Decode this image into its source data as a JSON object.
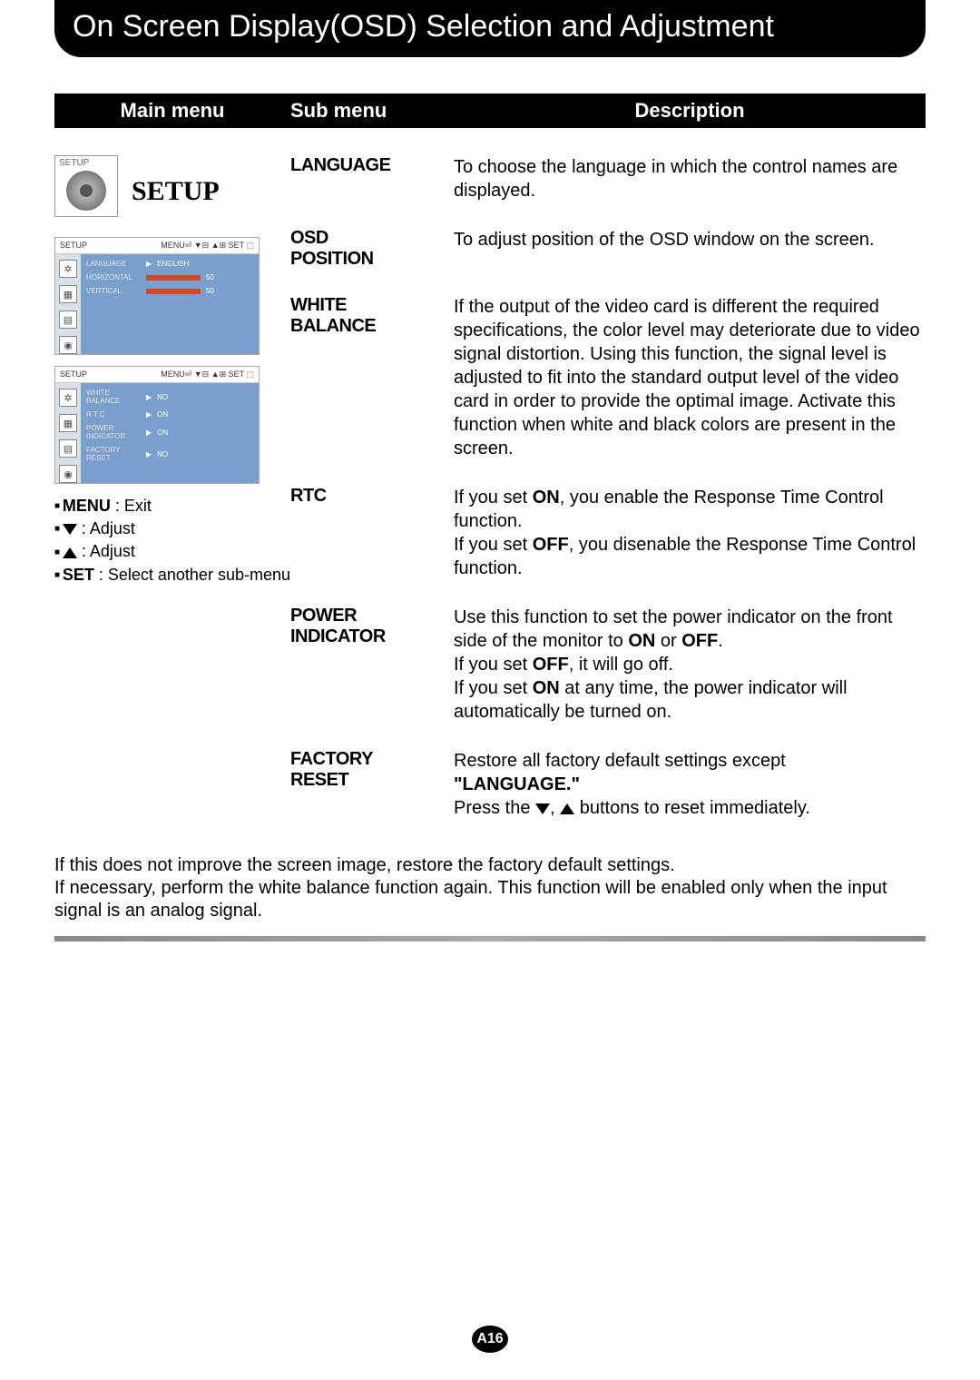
{
  "page": {
    "title": "On Screen Display(OSD) Selection and Adjustment",
    "pageNumber": "A16"
  },
  "headers": {
    "main": "Main menu",
    "sub": "Sub menu",
    "desc": "Description"
  },
  "mainMenu": {
    "badgeLabel": "SETUP",
    "title": "SETUP"
  },
  "osdShot1": {
    "headerLeft": "SETUP",
    "headerRight": "MENU⏎  ▼⊟  ▲⊞  SET ⬚",
    "rows": [
      {
        "label": "LANGUAGE",
        "value": "ENGLISH",
        "arrow": "▶",
        "bar": false
      },
      {
        "label": "HORIZONTAL",
        "value": "50",
        "arrow": "",
        "bar": true
      },
      {
        "label": "VERTICAL",
        "value": "50",
        "arrow": "",
        "bar": true
      }
    ],
    "icons": [
      "✲",
      "▦",
      "▤",
      "◉"
    ]
  },
  "osdShot2": {
    "headerLeft": "SETUP",
    "headerRight": "MENU⏎  ▼⊟  ▲⊞  SET ⬚",
    "rows": [
      {
        "label": "WHITE BALANCE",
        "value": "NO",
        "arrow": "▶",
        "bar": false
      },
      {
        "label": "R T C",
        "value": "ON",
        "arrow": "▶",
        "bar": false
      },
      {
        "label": "POWER INDICATOR",
        "value": "ON",
        "arrow": "▶",
        "bar": false
      },
      {
        "label": "FACTORY RESET",
        "value": "NO",
        "arrow": "▶",
        "bar": false
      }
    ],
    "icons": [
      "✲",
      "▦",
      "▤",
      "◉"
    ]
  },
  "nav": {
    "menu": {
      "key": "MENU",
      "desc": ": Exit"
    },
    "down": {
      "desc": ": Adjust"
    },
    "up": {
      "desc": ": Adjust"
    },
    "set": {
      "key": "SET",
      "desc": ": Select another sub-menu"
    }
  },
  "items": [
    {
      "sub": "LANGUAGE",
      "desc": "To choose the language in which the control names are displayed."
    },
    {
      "sub": "OSD\nPOSITION",
      "desc": "To adjust position of the OSD window on the screen."
    },
    {
      "sub": "WHITE\nBALANCE",
      "desc": "If the output of the video card is different the required specifications, the color level may deteriorate due to video signal distortion. Using this function, the signal level is adjusted to fit into the standard output level of the video card in order to provide the optimal image. Activate this function when white and black colors are present in the screen."
    },
    {
      "sub": "RTC",
      "descParts": {
        "p1": "If you set ",
        "b1": "ON",
        "p2": ", you enable the Response Time Control function.",
        "p3": "If you set ",
        "b2": "OFF",
        "p4": ", you disenable the Response Time Control function."
      }
    },
    {
      "sub": "POWER\nINDICATOR",
      "descParts": {
        "p1": "Use this function to set the power indicator on the front side of the monitor to ",
        "b1": "ON",
        "or": " or ",
        "b2": "OFF",
        "dot": ".",
        "p2": "If you set ",
        "b3": "OFF",
        "p3": ", it will go off.",
        "p4": "If you set ",
        "b4": "ON",
        "p5": " at any time, the power indicator will automatically be turned on."
      }
    },
    {
      "sub": "FACTORY\nRESET",
      "descParts": {
        "p1": "Restore all factory default settings except ",
        "b1": "\"LANGUAGE.\"",
        "p2": "Press the ",
        "p3": ",",
        "p4": " buttons to reset immediately."
      }
    }
  ],
  "bottomNote": "If this does not improve the screen image, restore the factory default settings.\nIf necessary, perform the white balance function again. This function will be enabled only when the input signal is an analog signal."
}
